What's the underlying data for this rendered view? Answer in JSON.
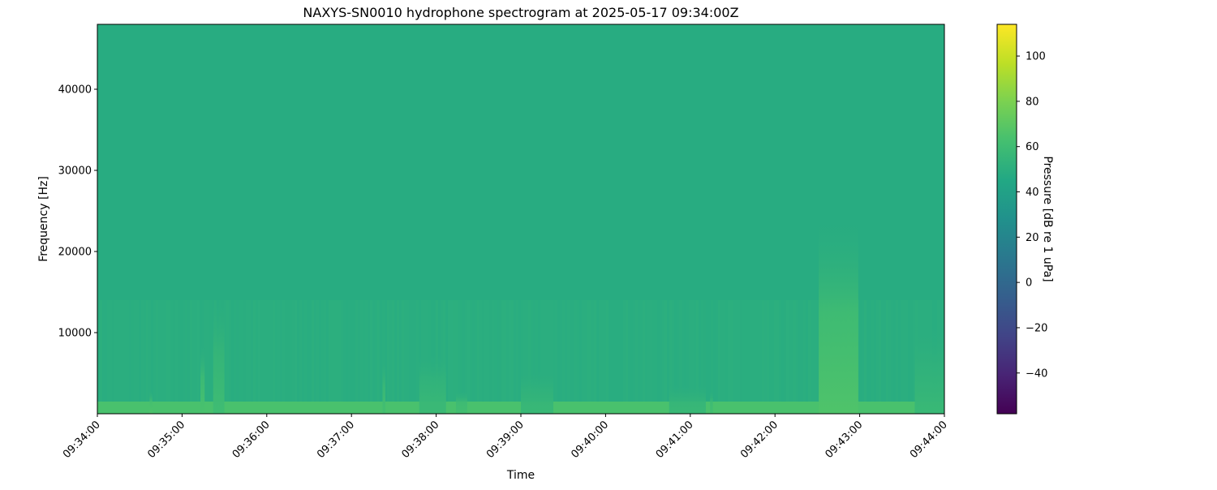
{
  "chart_data": {
    "type": "heatmap",
    "title": "NAXYS-SN0010 hydrophone spectrogram at 2025-05-17 09:34:00Z",
    "xlabel": "Time",
    "ylabel": "Frequency [Hz]",
    "xlim": [
      "09:34:00",
      "09:44:00"
    ],
    "ylim": [
      0,
      48000
    ],
    "x_ticks": [
      "09:34:00",
      "09:35:00",
      "09:36:00",
      "09:37:00",
      "09:38:00",
      "09:39:00",
      "09:40:00",
      "09:41:00",
      "09:42:00",
      "09:43:00",
      "09:44:00"
    ],
    "y_ticks": [
      10000,
      20000,
      30000,
      40000
    ],
    "colormap": "viridis",
    "colorbar": {
      "label": "Pressure [dB re 1 uPa]",
      "range": [
        -58,
        114
      ],
      "ticks": [
        -40,
        -20,
        0,
        20,
        40,
        60,
        80,
        100
      ]
    },
    "background_level_db": 48,
    "low_frequency_band": {
      "max_hz": 500,
      "level_db": 64
    },
    "events": [
      {
        "start": "09:34:37",
        "end": "09:34:39",
        "max_hz": 3000,
        "level_db": 66
      },
      {
        "start": "09:35:13",
        "end": "09:35:16",
        "max_hz": 9000,
        "level_db": 64
      },
      {
        "start": "09:35:22",
        "end": "09:35:30",
        "max_hz": 15000,
        "level_db": 60
      },
      {
        "start": "09:37:22",
        "end": "09:37:24",
        "max_hz": 7000,
        "level_db": 62
      },
      {
        "start": "09:37:48",
        "end": "09:38:07",
        "max_hz": 8000,
        "level_db": 58
      },
      {
        "start": "09:38:14",
        "end": "09:38:22",
        "max_hz": 3000,
        "level_db": 62
      },
      {
        "start": "09:39:00",
        "end": "09:39:23",
        "max_hz": 6000,
        "level_db": 57
      },
      {
        "start": "09:40:45",
        "end": "09:41:11",
        "max_hz": 4000,
        "level_db": 57
      },
      {
        "start": "09:41:14",
        "end": "09:41:16",
        "max_hz": 3000,
        "level_db": 62
      },
      {
        "start": "09:42:31",
        "end": "09:42:59",
        "max_hz": 25000,
        "level_db": 66
      },
      {
        "start": "09:43:39",
        "end": "09:44:00",
        "max_hz": 12000,
        "level_db": 57
      }
    ]
  }
}
